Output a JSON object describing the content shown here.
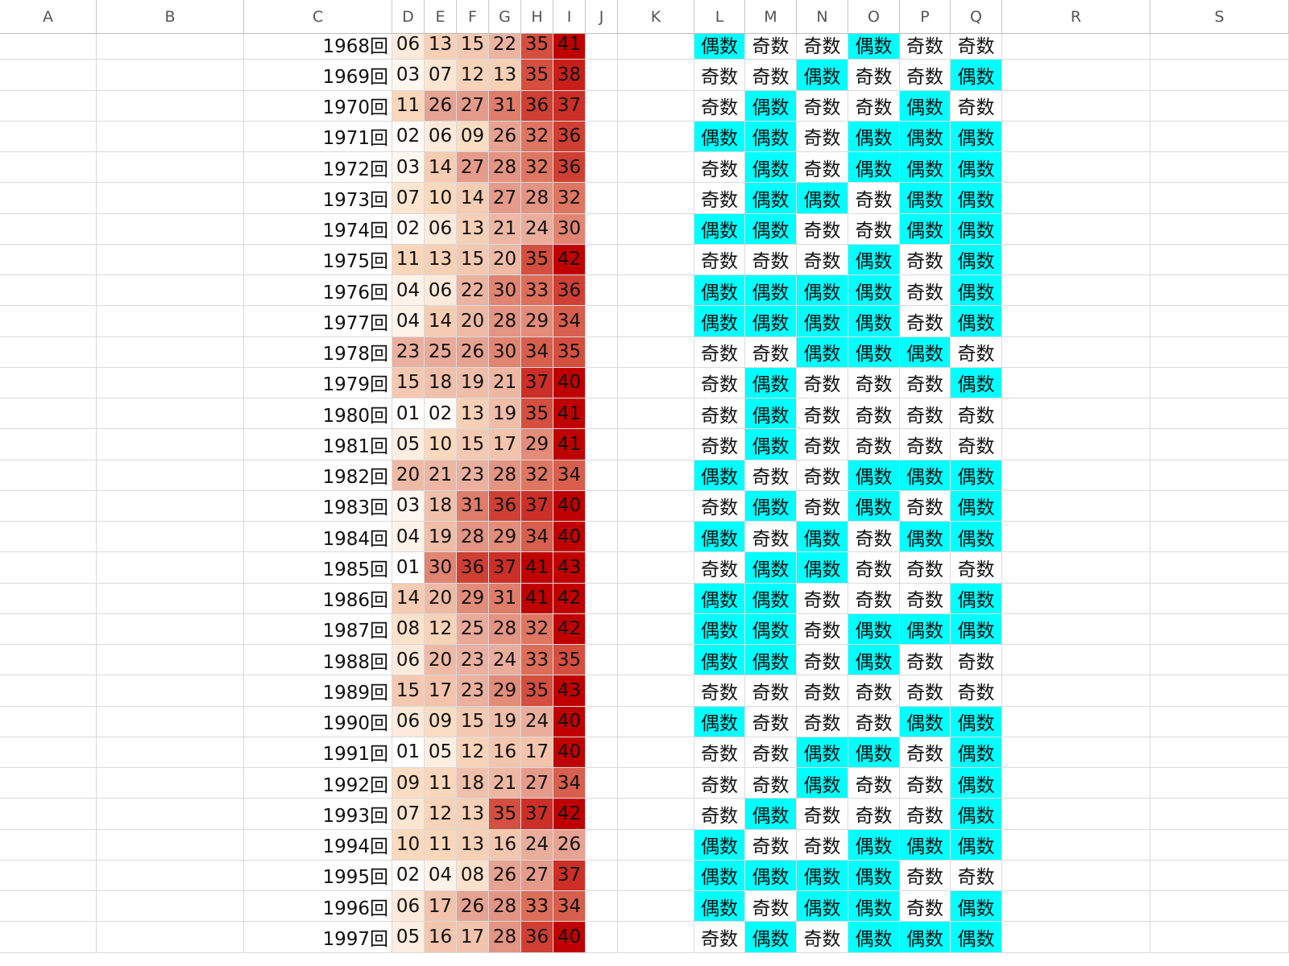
{
  "sheet": {
    "columns": [
      "A",
      "B",
      "C",
      "D",
      "E",
      "F",
      "G",
      "H",
      "I",
      "J",
      "K",
      "L",
      "M",
      "N",
      "O",
      "P",
      "Q",
      "R",
      "S"
    ],
    "rows": [
      {
        "label": "1968回",
        "nums": [
          "06",
          "13",
          "15",
          "22",
          "35",
          "41"
        ],
        "parity": [
          "偶数",
          "奇数",
          "奇数",
          "偶数",
          "奇数",
          "奇数"
        ]
      },
      {
        "label": "1969回",
        "nums": [
          "03",
          "07",
          "12",
          "13",
          "35",
          "38"
        ],
        "parity": [
          "奇数",
          "奇数",
          "偶数",
          "奇数",
          "奇数",
          "偶数"
        ]
      },
      {
        "label": "1970回",
        "nums": [
          "11",
          "26",
          "27",
          "31",
          "36",
          "37"
        ],
        "parity": [
          "奇数",
          "偶数",
          "奇数",
          "奇数",
          "偶数",
          "奇数"
        ]
      },
      {
        "label": "1971回",
        "nums": [
          "02",
          "06",
          "09",
          "26",
          "32",
          "36"
        ],
        "parity": [
          "偶数",
          "偶数",
          "奇数",
          "偶数",
          "偶数",
          "偶数"
        ]
      },
      {
        "label": "1972回",
        "nums": [
          "03",
          "14",
          "27",
          "28",
          "32",
          "36"
        ],
        "parity": [
          "奇数",
          "偶数",
          "奇数",
          "偶数",
          "偶数",
          "偶数"
        ]
      },
      {
        "label": "1973回",
        "nums": [
          "07",
          "10",
          "14",
          "27",
          "28",
          "32"
        ],
        "parity": [
          "奇数",
          "偶数",
          "偶数",
          "奇数",
          "偶数",
          "偶数"
        ]
      },
      {
        "label": "1974回",
        "nums": [
          "02",
          "06",
          "13",
          "21",
          "24",
          "30"
        ],
        "parity": [
          "偶数",
          "偶数",
          "奇数",
          "奇数",
          "偶数",
          "偶数"
        ]
      },
      {
        "label": "1975回",
        "nums": [
          "11",
          "13",
          "15",
          "20",
          "35",
          "42"
        ],
        "parity": [
          "奇数",
          "奇数",
          "奇数",
          "偶数",
          "奇数",
          "偶数"
        ]
      },
      {
        "label": "1976回",
        "nums": [
          "04",
          "06",
          "22",
          "30",
          "33",
          "36"
        ],
        "parity": [
          "偶数",
          "偶数",
          "偶数",
          "偶数",
          "奇数",
          "偶数"
        ]
      },
      {
        "label": "1977回",
        "nums": [
          "04",
          "14",
          "20",
          "28",
          "29",
          "34"
        ],
        "parity": [
          "偶数",
          "偶数",
          "偶数",
          "偶数",
          "奇数",
          "偶数"
        ]
      },
      {
        "label": "1978回",
        "nums": [
          "23",
          "25",
          "26",
          "30",
          "34",
          "35"
        ],
        "parity": [
          "奇数",
          "奇数",
          "偶数",
          "偶数",
          "偶数",
          "奇数"
        ]
      },
      {
        "label": "1979回",
        "nums": [
          "15",
          "18",
          "19",
          "21",
          "37",
          "40"
        ],
        "parity": [
          "奇数",
          "偶数",
          "奇数",
          "奇数",
          "奇数",
          "偶数"
        ]
      },
      {
        "label": "1980回",
        "nums": [
          "01",
          "02",
          "13",
          "19",
          "35",
          "41"
        ],
        "parity": [
          "奇数",
          "偶数",
          "奇数",
          "奇数",
          "奇数",
          "奇数"
        ]
      },
      {
        "label": "1981回",
        "nums": [
          "05",
          "10",
          "15",
          "17",
          "29",
          "41"
        ],
        "parity": [
          "奇数",
          "偶数",
          "奇数",
          "奇数",
          "奇数",
          "奇数"
        ]
      },
      {
        "label": "1982回",
        "nums": [
          "20",
          "21",
          "23",
          "28",
          "32",
          "34"
        ],
        "parity": [
          "偶数",
          "奇数",
          "奇数",
          "偶数",
          "偶数",
          "偶数"
        ]
      },
      {
        "label": "1983回",
        "nums": [
          "03",
          "18",
          "31",
          "36",
          "37",
          "40"
        ],
        "parity": [
          "奇数",
          "偶数",
          "奇数",
          "偶数",
          "奇数",
          "偶数"
        ]
      },
      {
        "label": "1984回",
        "nums": [
          "04",
          "19",
          "28",
          "29",
          "34",
          "40"
        ],
        "parity": [
          "偶数",
          "奇数",
          "偶数",
          "奇数",
          "偶数",
          "偶数"
        ]
      },
      {
        "label": "1985回",
        "nums": [
          "01",
          "30",
          "36",
          "37",
          "41",
          "43"
        ],
        "parity": [
          "奇数",
          "偶数",
          "偶数",
          "奇数",
          "奇数",
          "奇数"
        ]
      },
      {
        "label": "1986回",
        "nums": [
          "14",
          "20",
          "29",
          "31",
          "41",
          "42"
        ],
        "parity": [
          "偶数",
          "偶数",
          "奇数",
          "奇数",
          "奇数",
          "偶数"
        ]
      },
      {
        "label": "1987回",
        "nums": [
          "08",
          "12",
          "25",
          "28",
          "32",
          "42"
        ],
        "parity": [
          "偶数",
          "偶数",
          "奇数",
          "偶数",
          "偶数",
          "偶数"
        ]
      },
      {
        "label": "1988回",
        "nums": [
          "06",
          "20",
          "23",
          "24",
          "33",
          "35"
        ],
        "parity": [
          "偶数",
          "偶数",
          "奇数",
          "偶数",
          "奇数",
          "奇数"
        ]
      },
      {
        "label": "1989回",
        "nums": [
          "15",
          "17",
          "23",
          "29",
          "35",
          "43"
        ],
        "parity": [
          "奇数",
          "奇数",
          "奇数",
          "奇数",
          "奇数",
          "奇数"
        ]
      },
      {
        "label": "1990回",
        "nums": [
          "06",
          "09",
          "15",
          "19",
          "24",
          "40"
        ],
        "parity": [
          "偶数",
          "奇数",
          "奇数",
          "奇数",
          "偶数",
          "偶数"
        ]
      },
      {
        "label": "1991回",
        "nums": [
          "01",
          "05",
          "12",
          "16",
          "17",
          "40"
        ],
        "parity": [
          "奇数",
          "奇数",
          "偶数",
          "偶数",
          "奇数",
          "偶数"
        ]
      },
      {
        "label": "1992回",
        "nums": [
          "09",
          "11",
          "18",
          "21",
          "27",
          "34"
        ],
        "parity": [
          "奇数",
          "奇数",
          "偶数",
          "奇数",
          "奇数",
          "偶数"
        ]
      },
      {
        "label": "1993回",
        "nums": [
          "07",
          "12",
          "13",
          "35",
          "37",
          "42"
        ],
        "parity": [
          "奇数",
          "偶数",
          "奇数",
          "奇数",
          "奇数",
          "偶数"
        ]
      },
      {
        "label": "1994回",
        "nums": [
          "10",
          "11",
          "13",
          "16",
          "24",
          "26"
        ],
        "parity": [
          "偶数",
          "奇数",
          "奇数",
          "偶数",
          "偶数",
          "偶数"
        ]
      },
      {
        "label": "1995回",
        "nums": [
          "02",
          "04",
          "08",
          "26",
          "27",
          "37"
        ],
        "parity": [
          "偶数",
          "偶数",
          "偶数",
          "偶数",
          "奇数",
          "奇数"
        ]
      },
      {
        "label": "1996回",
        "nums": [
          "06",
          "17",
          "26",
          "28",
          "33",
          "34"
        ],
        "parity": [
          "偶数",
          "奇数",
          "偶数",
          "偶数",
          "奇数",
          "偶数"
        ]
      },
      {
        "label": "1997回",
        "nums": [
          "05",
          "16",
          "17",
          "28",
          "36",
          "40"
        ],
        "parity": [
          "奇数",
          "偶数",
          "奇数",
          "偶数",
          "偶数",
          "偶数"
        ]
      }
    ]
  },
  "colors": {
    "even_fill": "#00ffff",
    "heat_low": "#ffffff",
    "heat_mid": "#fbd9bc",
    "heat_upper": "#e9aa9a",
    "heat_high": "#dc6e5a",
    "heat_max": "#c00000",
    "grid": "#dadada",
    "header_text": "#555555"
  }
}
